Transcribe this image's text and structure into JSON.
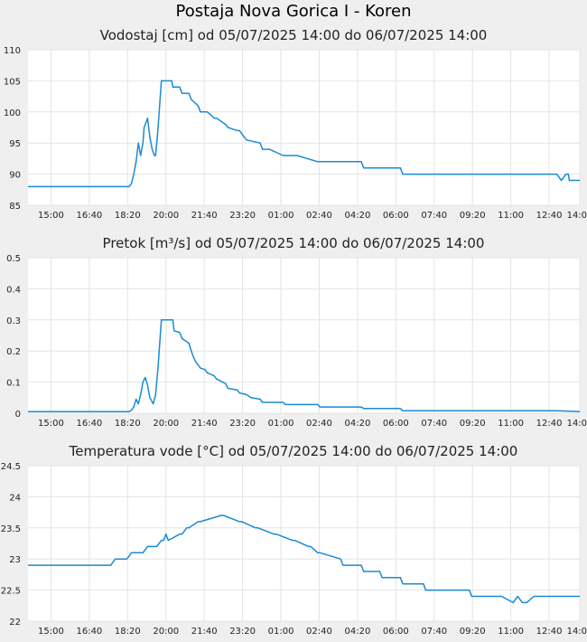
{
  "page": {
    "title": "Postaja Nova Gorica I - Koren"
  },
  "colors": {
    "line": "#1a8ad4",
    "grid": "#e4e4e4",
    "background": "#efefef",
    "plot": "#ffffff"
  },
  "chart_data": [
    {
      "type": "line",
      "title": "Vodostaj [cm] od 05/07/2025 14:00 do 06/07/2025 14:00",
      "ylim": [
        85,
        110
      ],
      "yticks": [
        "85",
        "90",
        "95",
        "100",
        "105",
        "110"
      ],
      "xticks": [
        "15:00",
        "16:40",
        "18:20",
        "20:00",
        "21:40",
        "23:20",
        "01:00",
        "02:40",
        "04:20",
        "06:00",
        "07:40",
        "09:20",
        "11:00",
        "12:40",
        "14:00"
      ],
      "xlim_hours": [
        0,
        24
      ],
      "grid": true,
      "series": [
        {
          "x": [
            0,
            4.4,
            4.5,
            4.6,
            4.7,
            4.8,
            4.85,
            4.9,
            5.0,
            5.05,
            5.2,
            5.3,
            5.4,
            5.5,
            5.55,
            5.65,
            5.8,
            5.9,
            5.95,
            6.05,
            6.15,
            6.25,
            6.3,
            6.6,
            6.7,
            7.0,
            7.1,
            7.4,
            7.5,
            7.7,
            7.8,
            8.1,
            8.2,
            8.6,
            8.7,
            9.1,
            9.2,
            9.4,
            9.5,
            10.1,
            10.2,
            10.4,
            10.5,
            11.1,
            11.2,
            11.6,
            11.7,
            12.6,
            12.7,
            13.0,
            13.1,
            14.5,
            14.6,
            16.2,
            16.3,
            23.0,
            23.2,
            23.4,
            23.5,
            23.55,
            24.0
          ],
          "values": [
            88,
            88,
            88.5,
            90,
            92,
            95,
            94,
            93,
            95,
            97.5,
            99,
            96,
            94,
            93,
            93,
            97,
            105,
            105,
            105,
            105,
            105,
            105,
            104,
            104,
            103,
            103,
            102,
            101,
            100,
            100,
            100,
            99,
            99,
            98,
            97.5,
            97,
            97,
            96,
            95.5,
            95,
            94,
            94,
            94,
            93,
            93,
            93,
            93,
            92,
            92,
            92,
            92,
            92,
            91,
            91,
            90,
            90,
            89,
            90,
            90,
            89,
            89
          ]
        }
      ]
    },
    {
      "type": "line",
      "title": "Pretok [m³/s] od 05/07/2025 14:00 do 06/07/2025 14:00",
      "ylim": [
        0,
        0.5
      ],
      "yticks": [
        "0",
        "0.1",
        "0.2",
        "0.3",
        "0.4",
        "0.5"
      ],
      "xticks": [
        "15:00",
        "16:40",
        "18:20",
        "20:00",
        "21:40",
        "23:20",
        "01:00",
        "02:40",
        "04:20",
        "06:00",
        "07:40",
        "09:20",
        "11:00",
        "12:40",
        "14:00"
      ],
      "xlim_hours": [
        0,
        24
      ],
      "grid": true,
      "series": [
        {
          "x": [
            0,
            4.4,
            4.5,
            4.6,
            4.7,
            4.8,
            4.9,
            5.0,
            5.1,
            5.2,
            5.3,
            5.45,
            5.55,
            5.65,
            5.8,
            5.9,
            6.3,
            6.35,
            6.6,
            6.7,
            7.0,
            7.1,
            7.2,
            7.3,
            7.5,
            7.7,
            7.8,
            8.1,
            8.2,
            8.6,
            8.7,
            9.1,
            9.2,
            9.5,
            9.7,
            10.1,
            10.2,
            11.1,
            11.2,
            12.6,
            12.7,
            14.5,
            14.6,
            16.2,
            16.3,
            23.0,
            24.0
          ],
          "values": [
            0.005,
            0.005,
            0.01,
            0.02,
            0.045,
            0.03,
            0.06,
            0.1,
            0.115,
            0.09,
            0.05,
            0.03,
            0.06,
            0.14,
            0.3,
            0.3,
            0.3,
            0.265,
            0.26,
            0.24,
            0.225,
            0.2,
            0.18,
            0.165,
            0.145,
            0.14,
            0.13,
            0.12,
            0.11,
            0.095,
            0.08,
            0.075,
            0.065,
            0.06,
            0.05,
            0.045,
            0.035,
            0.035,
            0.028,
            0.028,
            0.02,
            0.02,
            0.015,
            0.015,
            0.008,
            0.008,
            0.005
          ]
        }
      ]
    },
    {
      "type": "line",
      "title": "Temperatura vode [°C] od 05/07/2025 14:00 do 06/07/2025 14:00",
      "ylim": [
        22,
        24.5
      ],
      "yticks": [
        "22",
        "22.5",
        "23",
        "23.5",
        "24",
        "24.5"
      ],
      "xticks": [
        "15:00",
        "16:40",
        "18:20",
        "20:00",
        "21:40",
        "23:20",
        "01:00",
        "02:40",
        "04:20",
        "06:00",
        "07:40",
        "09:20",
        "11:00",
        "12:40",
        "14:00"
      ],
      "xlim_hours": [
        0,
        24
      ],
      "grid": true,
      "series": [
        {
          "x": [
            0,
            3.6,
            3.8,
            4.3,
            4.5,
            5.0,
            5.2,
            5.6,
            5.8,
            5.9,
            6.0,
            6.1,
            6.6,
            6.7,
            6.9,
            7.0,
            7.4,
            7.5,
            8.4,
            8.5,
            9.2,
            9.3,
            9.9,
            10.0,
            10.7,
            10.8,
            11.5,
            11.6,
            12.2,
            12.3,
            12.6,
            12.7,
            13.6,
            13.7,
            14.5,
            14.6,
            15.3,
            15.4,
            16.2,
            16.3,
            17.2,
            17.3,
            19.2,
            19.3,
            20.5,
            20.6,
            21.1,
            21.3,
            21.5,
            21.7,
            22.0,
            22.2,
            24.0
          ],
          "values": [
            22.9,
            22.9,
            23.0,
            23.0,
            23.1,
            23.1,
            23.2,
            23.2,
            23.3,
            23.3,
            23.4,
            23.3,
            23.4,
            23.4,
            23.5,
            23.5,
            23.6,
            23.6,
            23.7,
            23.7,
            23.6,
            23.6,
            23.5,
            23.5,
            23.4,
            23.4,
            23.3,
            23.3,
            23.2,
            23.2,
            23.1,
            23.1,
            23.0,
            22.9,
            22.9,
            22.8,
            22.8,
            22.7,
            22.7,
            22.6,
            22.6,
            22.5,
            22.5,
            22.4,
            22.4,
            22.4,
            22.3,
            22.4,
            22.3,
            22.3,
            22.4,
            22.4,
            22.4
          ]
        }
      ]
    }
  ]
}
